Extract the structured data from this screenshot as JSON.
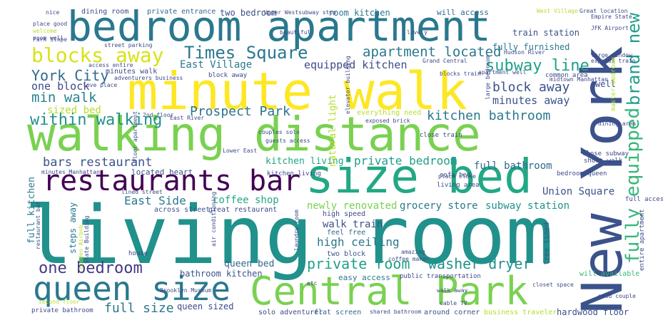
{
  "words": [
    {
      "id": "living-room",
      "text": "living room",
      "color": "#21918c"
    },
    {
      "id": "new-york",
      "text": "New York",
      "color": "#3b528b"
    },
    {
      "id": "minute-walk",
      "text": "minute walk",
      "color": "#fde725"
    },
    {
      "id": "walking-distance",
      "text": "walking distance",
      "color": "#7ad151"
    },
    {
      "id": "bedroom-apartment",
      "text": "bedroom apartment",
      "color": "#2a788e"
    },
    {
      "id": "size-bed",
      "text": "size bed",
      "color": "#22a884"
    },
    {
      "id": "central-park",
      "text": "Central Park",
      "color": "#7ad151"
    },
    {
      "id": "queen-size",
      "text": "queen size",
      "color": "#2a788e"
    },
    {
      "id": "restaurants-bar",
      "text": "restaurants bar",
      "color": "#440154"
    },
    {
      "id": "blocks-away",
      "text": "blocks away",
      "color": "#d8e219"
    },
    {
      "id": "times-square",
      "text": "Times Square",
      "color": "#2a788e"
    },
    {
      "id": "apartment-located",
      "text": "apartment located",
      "color": "#2a788e"
    },
    {
      "id": "fully-equipped",
      "text": "fully equipped",
      "color": "#35b779"
    },
    {
      "id": "brand-new",
      "text": "brand new",
      "color": "#1f9e89"
    },
    {
      "id": "york-city",
      "text": "York City",
      "color": "#31688e"
    },
    {
      "id": "one-block",
      "text": "one block",
      "color": "#3e4989"
    },
    {
      "id": "min-walk",
      "text": "min walk",
      "color": "#26828e"
    },
    {
      "id": "sized-bed",
      "text": "sized bed",
      "color": "#b5de2b"
    },
    {
      "id": "within-walking",
      "text": "within walking",
      "color": "#21918c"
    },
    {
      "id": "prospect-park",
      "text": "Prospect Park",
      "color": "#2c728e"
    },
    {
      "id": "kitchen-bathroom",
      "text": "kitchen bathroom",
      "color": "#2a788e"
    },
    {
      "id": "block-away",
      "text": "block away",
      "color": "#3b528b"
    },
    {
      "id": "subway-line",
      "text": "subway line",
      "color": "#1fa188"
    },
    {
      "id": "equipped-kitchen",
      "text": "equipped kitchen",
      "color": "#3e4989"
    },
    {
      "id": "minutes-away",
      "text": "minutes away",
      "color": "#3b528b"
    },
    {
      "id": "east-village",
      "text": "East Village",
      "color": "#2a788e"
    },
    {
      "id": "bars-restaurant",
      "text": "bars restaurant",
      "color": "#3b528b"
    },
    {
      "id": "private-bedroom",
      "text": "private bedroom",
      "color": "#1f9e89"
    },
    {
      "id": "full-bathroom",
      "text": "full bathroom",
      "color": "#31688e"
    },
    {
      "id": "east-side",
      "text": "East Side",
      "color": "#2a788e"
    },
    {
      "id": "coffee-shop",
      "text": "coffee shop",
      "color": "#22a884"
    },
    {
      "id": "newly-renovated",
      "text": "newly renovated",
      "color": "#7ad151"
    },
    {
      "id": "grocery-store",
      "text": "grocery store",
      "color": "#2a788e"
    },
    {
      "id": "subway-station",
      "text": "subway station",
      "color": "#21918c"
    },
    {
      "id": "union-square",
      "text": "Union Square",
      "color": "#3b528b"
    },
    {
      "id": "one-bedroom",
      "text": "one bedroom",
      "color": "#443983"
    },
    {
      "id": "private-room",
      "text": "private room",
      "color": "#1fa188"
    },
    {
      "id": "washer-dryer",
      "text": "washer dryer",
      "color": "#21918c"
    },
    {
      "id": "full-size",
      "text": "full size",
      "color": "#2a788e"
    },
    {
      "id": "queen-sized",
      "text": "queen sized",
      "color": "#3e4989"
    },
    {
      "id": "high-ceiling",
      "text": "high ceiling",
      "color": "#2a788e"
    },
    {
      "id": "walk-train",
      "text": "walk train",
      "color": "#3b528b"
    },
    {
      "id": "full-kitchen",
      "text": "full kitchen",
      "color": "#2a788e"
    },
    {
      "id": "steps-away",
      "text": "steps away",
      "color": "#2a788e"
    },
    {
      "id": "hardwood-floor",
      "text": "hardwood floor",
      "color": "#3b528b"
    },
    {
      "id": "kitchen-living",
      "text": "kitchen living",
      "color": "#22a884"
    },
    {
      "id": "natural-light",
      "text": "natural light",
      "color": "#b5de2b"
    },
    {
      "id": "queen-bed",
      "text": "queen bed",
      "color": "#31688e"
    },
    {
      "id": "bathroom-kitchen",
      "text": "bathroom kitchen",
      "color": "#3b528b"
    },
    {
      "id": "dining-room",
      "text": "dining room",
      "color": "#3e4989"
    },
    {
      "id": "private-entrance",
      "text": "private entrance",
      "color": "#31688e"
    },
    {
      "id": "two-bedroom",
      "text": "two bedroom",
      "color": "#3b528b"
    },
    {
      "id": "room-kitchen",
      "text": "room kitchen",
      "color": "#2a788e"
    },
    {
      "id": "will-access",
      "text": "will access",
      "color": "#31688e"
    },
    {
      "id": "fully-furnished",
      "text": "fully furnished",
      "color": "#2a788e"
    },
    {
      "id": "train-station",
      "text": "train station",
      "color": "#3b528b"
    },
    {
      "id": "feel-free",
      "text": "feel free",
      "color": "#31688e"
    },
    {
      "id": "high-speed",
      "text": "high speed",
      "color": "#3e4989"
    },
    {
      "id": "easy-access",
      "text": "easy access",
      "color": "#2a788e"
    },
    {
      "id": "two-block",
      "text": "two block",
      "color": "#3b528b"
    },
    {
      "id": "located-heart",
      "text": "located heart",
      "color": "#3b528b"
    },
    {
      "id": "minutes-walk",
      "text": "minutes walk",
      "color": "#3e4989"
    },
    {
      "id": "block-away-small",
      "text": "block away",
      "color": "#3e4989"
    },
    {
      "id": "great-restaurant",
      "text": "great restaurant",
      "color": "#3e4989"
    },
    {
      "id": "across-street",
      "text": "across street",
      "color": "#3b528b"
    },
    {
      "id": "around-corner",
      "text": "around corner",
      "color": "#3b528b"
    },
    {
      "id": "business-traveler",
      "text": "business traveler",
      "color": "#b5de2b"
    },
    {
      "id": "solo-adventurer",
      "text": "solo adventurer",
      "color": "#3e4989"
    },
    {
      "id": "flat-screen",
      "text": "flat screen",
      "color": "#31688e"
    },
    {
      "id": "private-bathroom",
      "text": "private bathroom",
      "color": "#3e4989"
    },
    {
      "id": "entire-apartment",
      "text": "entire apartment",
      "color": "#3e4989"
    },
    {
      "id": "tree-lined",
      "text": "tree lined",
      "color": "#3b528b"
    },
    {
      "id": "will-available",
      "text": "will available",
      "color": "#35b779"
    },
    {
      "id": "full-access",
      "text": "full access",
      "color": "#3e4989"
    },
    {
      "id": "well",
      "text": "well",
      "color": "#3e4989"
    },
    {
      "id": "common-area",
      "text": "common area",
      "color": "#3e4989"
    },
    {
      "id": "close-subway",
      "text": "close subway",
      "color": "#3e4989"
    },
    {
      "id": "bedroom-queen",
      "text": "bedroom queen",
      "color": "#3e4989"
    },
    {
      "id": "everything-need",
      "text": "everything need",
      "color": "#b5de2b"
    },
    {
      "id": "kitchen-living-small",
      "text": "kitchen living",
      "color": "#3e4989"
    },
    {
      "id": "sofa-bed",
      "text": "sofa bed",
      "color": "#3e4989"
    },
    {
      "id": "living-area",
      "text": "living area",
      "color": "#3e4989"
    },
    {
      "id": "lined-street",
      "text": "lined street",
      "color": "#3e4989"
    },
    {
      "id": "close-train",
      "text": "close train",
      "color": "#3e4989"
    },
    {
      "id": "guests-access",
      "text": "guests access",
      "color": "#3e4989"
    },
    {
      "id": "couples-solo",
      "text": "couples solo",
      "color": "#3e4989"
    },
    {
      "id": "lower-east",
      "text": "Lower East",
      "color": "#3e4989"
    },
    {
      "id": "house",
      "text": "house",
      "color": "#3e4989"
    },
    {
      "id": "etc",
      "text": "etc",
      "color": "#3e4989"
    },
    {
      "id": "place-close",
      "text": "place close",
      "color": "#3e4989"
    },
    {
      "id": "short-walk",
      "text": "short walk",
      "color": "#3e4989"
    },
    {
      "id": "public-transportation",
      "text": "public transportation",
      "color": "#3e4989"
    },
    {
      "id": "cable-tv",
      "text": "cable TV",
      "color": "#3e4989"
    },
    {
      "id": "good-couple",
      "text": "good couple",
      "color": "#3e4989"
    },
    {
      "id": "second-floor",
      "text": "second floor",
      "color": "#b5de2b"
    },
    {
      "id": "laundry-room",
      "text": "laundry room",
      "color": "#3e4989"
    },
    {
      "id": "hidden-airbnb",
      "text": "hidden Airbnb",
      "color": "#b5de2b"
    },
    {
      "id": "minutes-manhattan",
      "text": "minutes Manhattan",
      "color": "#3e4989"
    },
    {
      "id": "dining-area",
      "text": "dining area",
      "color": "#3e4989"
    },
    {
      "id": "large-bedroom",
      "text": "large bedroom",
      "color": "#3e4989"
    },
    {
      "id": "floor-apartment",
      "text": "floor apartment",
      "color": "#3e4989"
    },
    {
      "id": "shared-bathroom",
      "text": "shared bathroom",
      "color": "#3e4989"
    },
    {
      "id": "coffee-maker",
      "text": "coffee maker",
      "color": "#3e4989"
    },
    {
      "id": "amazing",
      "text": "amazing",
      "color": "#3e4989"
    },
    {
      "id": "express-train",
      "text": "express train",
      "color": "#3e4989"
    },
    {
      "id": "street-parking",
      "text": "street parking",
      "color": "#3e4989"
    },
    {
      "id": "place-good",
      "text": "place good",
      "color": "#3e4989"
    },
    {
      "id": "love-place",
      "text": "love place",
      "color": "#3e4989"
    },
    {
      "id": "access-entire",
      "text": "access entire",
      "color": "#3e4989"
    },
    {
      "id": "adventurers-business",
      "text": "adventurers business",
      "color": "#3e4989"
    },
    {
      "id": "east-river",
      "text": "East River",
      "color": "#3e4989"
    },
    {
      "id": "2nd-floor",
      "text": "2nd floor",
      "color": "#3e4989"
    },
    {
      "id": "exposed-brick",
      "text": "exposed brick",
      "color": "#3e4989"
    },
    {
      "id": "elevator-building",
      "text": "elevator building",
      "color": "#3e4989"
    },
    {
      "id": "blocks-train",
      "text": "blocks train",
      "color": "#3e4989"
    },
    {
      "id": "apartment-well",
      "text": "apartment well",
      "color": "#3e4989"
    },
    {
      "id": "upper-west",
      "text": "Upper West",
      "color": "#3e4989"
    },
    {
      "id": "subway-stop",
      "text": "subway stop",
      "color": "#3e4989"
    },
    {
      "id": "beautiful",
      "text": "beautiful",
      "color": "#3e4989"
    },
    {
      "id": "lovely",
      "text": "lovely",
      "color": "#3e4989"
    },
    {
      "id": "west-village",
      "text": "West Village",
      "color": "#b5de2b"
    },
    {
      "id": "great-location",
      "text": "Great location",
      "color": "#3e4989"
    },
    {
      "id": "empire-state",
      "text": "Empire State",
      "color": "#3e4989"
    },
    {
      "id": "jfk-airport",
      "text": "JFK Airport",
      "color": "#3e4989"
    },
    {
      "id": "hudson-river",
      "text": "Hudson River",
      "color": "#3e4989"
    },
    {
      "id": "large-window",
      "text": "large window",
      "color": "#3e4989"
    },
    {
      "id": "midtown-manhattan",
      "text": "midtown Manhattan",
      "color": "#3e4989"
    },
    {
      "id": "master-bedroom",
      "text": "master bedroom",
      "color": "#b5de2b"
    },
    {
      "id": "grand-central",
      "text": "Grand Central",
      "color": "#3e4989"
    },
    {
      "id": "nice",
      "text": "nice",
      "color": "#3e4989"
    },
    {
      "id": "room-well",
      "text": "room well",
      "color": "#3e4989"
    },
    {
      "id": "state-building",
      "text": "State Building",
      "color": "#3e4989"
    },
    {
      "id": "walk-away",
      "text": "walk away",
      "color": "#3e4989"
    },
    {
      "id": "closet-space",
      "text": "closet space",
      "color": "#3e4989"
    },
    {
      "id": "restaurant-bar",
      "text": "restaurant bar",
      "color": "#3e4989"
    },
    {
      "id": "air-conditioning",
      "text": "air conditioning",
      "color": "#3e4989"
    },
    {
      "id": "brooklyn-museum",
      "text": "Brooklyn Museum",
      "color": "#3e4989"
    },
    {
      "id": "welcome",
      "text": "welcome",
      "color": "#3e4989"
    },
    {
      "id": "park-slope",
      "text": "Park Slope",
      "color": "#b5de2b"
    },
    {
      "id": "lot-apartment",
      "text": "lot apartment",
      "color": "#3e4989"
    }
  ]
}
